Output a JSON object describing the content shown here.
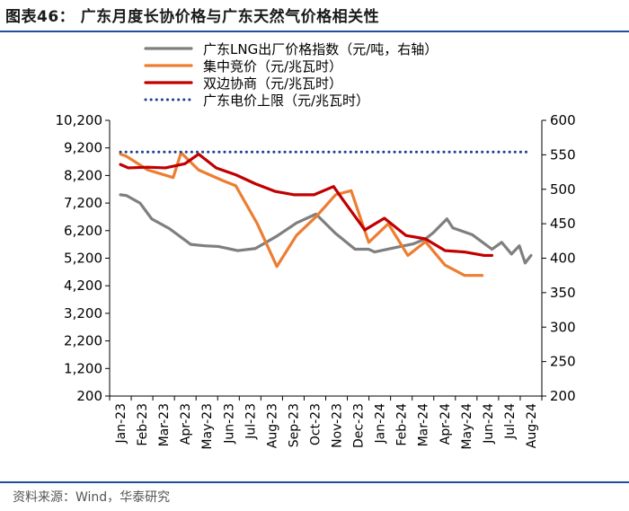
{
  "header": {
    "title": "图表46：  广东月度长协价格与广东天然气价格相关性"
  },
  "footer": {
    "source": "资料来源：Wind，华泰研究"
  },
  "chart_data": {
    "type": "line",
    "categories": [
      "Jan-23",
      "Feb-23",
      "Mar-23",
      "Apr-23",
      "May-23",
      "Jun-23",
      "Jul-23",
      "Aug-23",
      "Sep-23",
      "Oct-23",
      "Nov-23",
      "Dec-23",
      "Jan-24",
      "Feb-24",
      "Mar-24",
      "Apr-24",
      "May-24",
      "Jun-24",
      "Jul-24",
      "Aug-24"
    ],
    "left_axis": {
      "ylim": [
        200,
        10200
      ],
      "ticks": [
        200,
        1200,
        2200,
        3200,
        4200,
        5200,
        6200,
        7200,
        8200,
        9200,
        10200
      ],
      "tick_labels": [
        "200",
        "1,200",
        "2,200",
        "3,200",
        "4,200",
        "5,200",
        "6,200",
        "7,200",
        "8,200",
        "9,200",
        "10,200"
      ]
    },
    "right_axis": {
      "ylim": [
        200,
        600
      ],
      "ticks": [
        200,
        250,
        300,
        350,
        400,
        450,
        500,
        550,
        600
      ],
      "tick_labels": [
        "200",
        "250",
        "300",
        "350",
        "400",
        "450",
        "500",
        "550",
        "600"
      ]
    },
    "legend_position": "top-center",
    "series": [
      {
        "name": "广东LNG出厂价格指数（元/吨，右轴）",
        "axis": "right",
        "color": "#7f7f7f",
        "style": "solid",
        "values": [
          492,
          491,
          480,
          457,
          443,
          420,
          418,
          417,
          411,
          414,
          432,
          451,
          464,
          436,
          413,
          413,
          409,
          415,
          421,
          428,
          437,
          457,
          444,
          434,
          413,
          423,
          406,
          418,
          393,
          404
        ],
        "x": [
          0,
          0.3,
          1,
          1.6,
          2.5,
          3.6,
          4.3,
          5,
          6,
          6.9,
          8,
          9,
          10,
          11,
          12,
          12.7,
          13,
          14,
          15,
          15.6,
          16,
          16.7,
          17,
          18,
          19,
          19.5,
          20,
          20.4,
          20.7,
          21
        ]
      },
      {
        "name": "集中竞价（元/兆瓦时）",
        "axis": "right",
        "color": "#ed7d31",
        "style": "solid",
        "values": [
          551,
          548,
          528,
          517,
          553,
          528,
          513,
          505,
          450,
          388,
          433,
          460,
          492,
          498,
          423,
          450,
          404,
          424,
          390,
          375,
          375
        ],
        "x": [
          0,
          0.3,
          1.4,
          2.7,
          3.1,
          4,
          5.2,
          5.9,
          7,
          8,
          9,
          10,
          11,
          11.8,
          12.7,
          13.7,
          14.7,
          15.6,
          16.6,
          17.6,
          18.5
        ]
      },
      {
        "name": "双边协商（元/兆瓦时）",
        "axis": "right",
        "color": "#c00000",
        "style": "solid",
        "values": [
          536,
          531,
          532,
          531,
          537,
          551,
          531,
          521,
          508,
          497,
          492,
          492,
          504,
          484,
          441,
          458,
          433,
          428,
          411,
          409,
          404,
          404
        ],
        "x": [
          0,
          0.4,
          1.4,
          2.3,
          3.3,
          4,
          4.9,
          5.9,
          6.9,
          7.9,
          8.9,
          9.9,
          10.9,
          11.4,
          12.5,
          13.5,
          14.6,
          15.6,
          16.6,
          17.6,
          18.6,
          19
        ]
      },
      {
        "name": "广东电价上限（元/兆瓦时）",
        "axis": "right",
        "color": "#1f3f8f",
        "style": "dotted",
        "values": [
          554,
          554
        ],
        "x": [
          0,
          19
        ]
      }
    ]
  }
}
